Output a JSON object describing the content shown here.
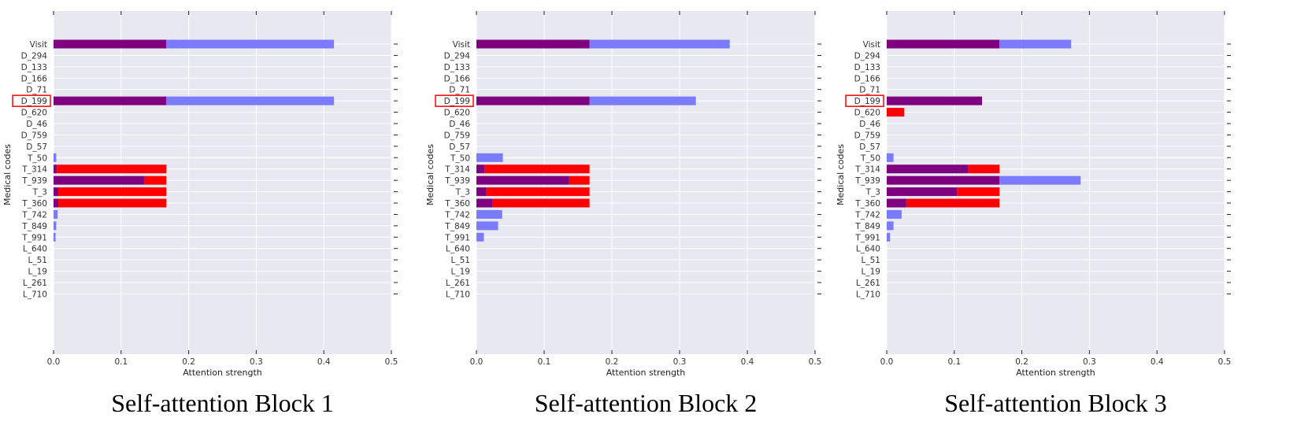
{
  "chart_data": [
    {
      "type": "bar",
      "orientation": "horizontal",
      "stacked": true,
      "caption": "Self-attention Block 1",
      "xlabel": "Attention strength",
      "ylabel": "Medical codes",
      "xlim": [
        0,
        0.5
      ],
      "xticks": [
        "0.0",
        "0.1",
        "0.2",
        "0.3",
        "0.4",
        "0.5"
      ],
      "grid": true,
      "highlight": "D_199",
      "colors": {
        "purple": "#7f007f",
        "blue": "#7b7bff",
        "red": "#ff0000",
        "background": "#e8e8f1",
        "highlight_box": "#ff0000"
      },
      "categories": [
        "Visit",
        "D_294",
        "D_133",
        "D_166",
        "D_71",
        "D_199",
        "D_620",
        "D_46",
        "D_759",
        "D_57",
        "T_50",
        "T_314",
        "T_939",
        "T_3",
        "T_360",
        "T_742",
        "T_849",
        "T_991",
        "L_640",
        "L_51",
        "L_19",
        "L_261",
        "L_710"
      ],
      "series": [
        {
          "color": "purple",
          "values": [
            0.167,
            0,
            0,
            0,
            0,
            0.167,
            0,
            0,
            0,
            0,
            0,
            0.005,
            0.134,
            0.007,
            0.007,
            0,
            0,
            0,
            0,
            0,
            0,
            0,
            0
          ]
        },
        {
          "color": "blue",
          "values": [
            0.248,
            0,
            0,
            0,
            0,
            0.248,
            0,
            0,
            0,
            0,
            0.004,
            0,
            0,
            0,
            0,
            0.006,
            0.004,
            0.003,
            0,
            0,
            0,
            0,
            0
          ]
        },
        {
          "color": "red",
          "values": [
            0,
            0,
            0,
            0,
            0,
            0,
            0,
            0,
            0,
            0,
            0,
            0.162,
            0.033,
            0.16,
            0.16,
            0,
            0,
            0,
            0,
            0,
            0,
            0,
            0
          ]
        }
      ]
    },
    {
      "type": "bar",
      "orientation": "horizontal",
      "stacked": true,
      "caption": "Self-attention Block 2",
      "xlabel": "Attention strength",
      "ylabel": "Medical codes",
      "xlim": [
        0,
        0.5
      ],
      "xticks": [
        "0.0",
        "0.1",
        "0.2",
        "0.3",
        "0.4",
        "0.5"
      ],
      "grid": true,
      "highlight": "D_199",
      "colors": {
        "purple": "#7f007f",
        "blue": "#7b7bff",
        "red": "#ff0000",
        "background": "#e8e8f1",
        "highlight_box": "#ff0000"
      },
      "categories": [
        "Visit",
        "D_294",
        "D_133",
        "D_166",
        "D_71",
        "D_199",
        "D_620",
        "D_46",
        "D_759",
        "D_57",
        "T_50",
        "T_314",
        "T_939",
        "T_3",
        "T_360",
        "T_742",
        "T_849",
        "T_991",
        "L_640",
        "L_51",
        "L_19",
        "L_261",
        "L_710"
      ],
      "series": [
        {
          "color": "purple",
          "values": [
            0.167,
            0,
            0,
            0,
            0,
            0.167,
            0,
            0,
            0,
            0,
            0,
            0.012,
            0.137,
            0.014,
            0.024,
            0,
            0,
            0,
            0,
            0,
            0,
            0,
            0
          ]
        },
        {
          "color": "blue",
          "values": [
            0.207,
            0,
            0,
            0,
            0,
            0.157,
            0,
            0,
            0,
            0,
            0.039,
            0,
            0,
            0,
            0,
            0.038,
            0.032,
            0.011,
            0,
            0,
            0,
            0,
            0
          ]
        },
        {
          "color": "red",
          "values": [
            0,
            0,
            0,
            0,
            0,
            0,
            0,
            0,
            0,
            0,
            0,
            0.155,
            0.03,
            0.153,
            0.143,
            0,
            0,
            0,
            0,
            0,
            0,
            0,
            0
          ]
        }
      ]
    },
    {
      "type": "bar",
      "orientation": "horizontal",
      "stacked": true,
      "caption": "Self-attention Block 3",
      "xlabel": "Attention strength",
      "ylabel": "Medical codes",
      "xlim": [
        0,
        0.5
      ],
      "xticks": [
        "0.0",
        "0.1",
        "0.2",
        "0.3",
        "0.4",
        "0.5"
      ],
      "grid": true,
      "highlight": "D_199",
      "colors": {
        "purple": "#7f007f",
        "blue": "#7b7bff",
        "red": "#ff0000",
        "background": "#e8e8f1",
        "highlight_box": "#ff0000"
      },
      "categories": [
        "Visit",
        "D_294",
        "D_133",
        "D_166",
        "D_71",
        "D_199",
        "D_620",
        "D_46",
        "D_759",
        "D_57",
        "T_50",
        "T_314",
        "T_939",
        "T_3",
        "T_360",
        "T_742",
        "T_849",
        "T_991",
        "L_640",
        "L_51",
        "L_19",
        "L_261",
        "L_710"
      ],
      "series": [
        {
          "color": "purple",
          "values": [
            0.167,
            0,
            0,
            0,
            0,
            0.141,
            0,
            0,
            0,
            0,
            0,
            0.12,
            0.167,
            0.104,
            0.029,
            0,
            0,
            0,
            0,
            0,
            0,
            0,
            0
          ]
        },
        {
          "color": "blue",
          "values": [
            0.106,
            0,
            0,
            0,
            0,
            0,
            0,
            0,
            0,
            0,
            0.01,
            0,
            0.12,
            0,
            0,
            0.022,
            0.01,
            0.005,
            0,
            0,
            0,
            0,
            0
          ]
        },
        {
          "color": "red",
          "values": [
            0,
            0,
            0,
            0,
            0,
            0,
            0.026,
            0,
            0,
            0,
            0,
            0.047,
            0,
            0.063,
            0.138,
            0,
            0,
            0,
            0,
            0,
            0,
            0,
            0
          ]
        }
      ]
    }
  ]
}
